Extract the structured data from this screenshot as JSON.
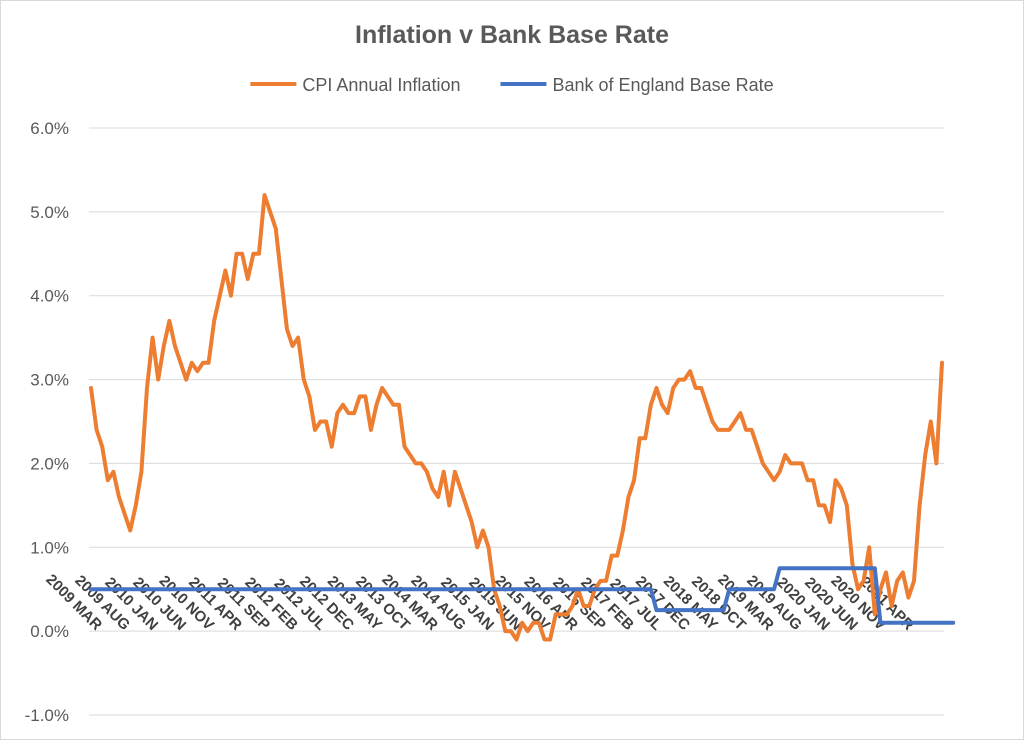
{
  "chart_data": {
    "type": "line",
    "title": "Inflation v Bank Base Rate",
    "legend_position": "top",
    "grid": true,
    "y_range": [
      -1.0,
      6.0
    ],
    "y_ticks": [
      "-1.0%",
      "0.0%",
      "1.0%",
      "2.0%",
      "3.0%",
      "4.0%",
      "5.0%",
      "6.0%"
    ],
    "x_start": "2009 MAR",
    "x_end": "2021 APR",
    "x_ticks": [
      "2009 MAR",
      "2009 AUG",
      "2010 JAN",
      "2010 JUN",
      "2010 NOV",
      "2011 APR",
      "2011 SEP",
      "2012 FEB",
      "2012 JUL",
      "2012 DEC",
      "2013 MAY",
      "2013 OCT",
      "2014 MAR",
      "2014 AUG",
      "2015 JAN",
      "2015 JUN",
      "2015 NOV",
      "2016 APR",
      "2016 SEP",
      "2017 FEB",
      "2017 JUL",
      "2017 DEC",
      "2018 MAY",
      "2018 OCT",
      "2019 MAR",
      "2019 AUG",
      "2020 JAN",
      "2020 JUN",
      "2020 NOV",
      "2021 APR"
    ],
    "series": [
      {
        "name": "CPI Annual Inflation",
        "color": "#ED7D31",
        "values": [
          2.9,
          2.4,
          2.2,
          1.8,
          1.9,
          1.6,
          1.4,
          1.2,
          1.5,
          1.9,
          2.9,
          3.5,
          3.0,
          3.4,
          3.7,
          3.4,
          3.2,
          3.0,
          3.2,
          3.1,
          3.2,
          3.2,
          3.7,
          4.0,
          4.3,
          4.0,
          4.5,
          4.5,
          4.2,
          4.5,
          4.5,
          5.2,
          5.0,
          4.8,
          4.2,
          3.6,
          3.4,
          3.5,
          3.0,
          2.8,
          2.4,
          2.5,
          2.5,
          2.2,
          2.6,
          2.7,
          2.6,
          2.6,
          2.8,
          2.8,
          2.4,
          2.7,
          2.9,
          2.8,
          2.7,
          2.7,
          2.2,
          2.1,
          2.0,
          2.0,
          1.9,
          1.7,
          1.6,
          1.9,
          1.5,
          1.9,
          1.7,
          1.5,
          1.3,
          1.0,
          1.2,
          1.0,
          0.5,
          0.3,
          0.0,
          0.0,
          -0.1,
          0.1,
          0.0,
          0.1,
          0.1,
          -0.1,
          -0.1,
          0.2,
          0.2,
          0.2,
          0.3,
          0.5,
          0.3,
          0.3,
          0.5,
          0.6,
          0.6,
          0.9,
          0.9,
          1.2,
          1.6,
          1.8,
          2.3,
          2.3,
          2.7,
          2.9,
          2.7,
          2.6,
          2.9,
          3.0,
          3.0,
          3.1,
          2.9,
          2.9,
          2.7,
          2.5,
          2.4,
          2.4,
          2.4,
          2.5,
          2.6,
          2.4,
          2.4,
          2.2,
          2.0,
          1.9,
          1.8,
          1.9,
          2.1,
          2.0,
          2.0,
          2.0,
          1.8,
          1.8,
          1.5,
          1.5,
          1.3,
          1.8,
          1.7,
          1.5,
          0.8,
          0.5,
          0.6,
          1.0,
          0.2,
          0.5,
          0.7,
          0.3,
          0.6,
          0.7,
          0.4,
          0.6,
          1.5,
          2.1,
          2.5,
          2.0,
          3.2
        ]
      },
      {
        "name": "Bank of England Base Rate",
        "color": "#4472C4",
        "values": [
          0.5,
          0.5,
          0.5,
          0.5,
          0.5,
          0.5,
          0.5,
          0.5,
          0.5,
          0.5,
          0.5,
          0.5,
          0.5,
          0.5,
          0.5,
          0.5,
          0.5,
          0.5,
          0.5,
          0.5,
          0.5,
          0.5,
          0.5,
          0.5,
          0.5,
          0.5,
          0.5,
          0.5,
          0.5,
          0.5,
          0.5,
          0.5,
          0.5,
          0.5,
          0.5,
          0.5,
          0.5,
          0.5,
          0.5,
          0.5,
          0.5,
          0.5,
          0.5,
          0.5,
          0.5,
          0.5,
          0.5,
          0.5,
          0.5,
          0.5,
          0.5,
          0.5,
          0.5,
          0.5,
          0.5,
          0.5,
          0.5,
          0.5,
          0.5,
          0.5,
          0.5,
          0.5,
          0.5,
          0.5,
          0.5,
          0.5,
          0.5,
          0.5,
          0.5,
          0.5,
          0.5,
          0.5,
          0.5,
          0.5,
          0.5,
          0.5,
          0.5,
          0.5,
          0.5,
          0.5,
          0.5,
          0.5,
          0.5,
          0.5,
          0.5,
          0.5,
          0.5,
          0.5,
          0.5,
          0.5,
          0.5,
          0.5,
          0.5,
          0.5,
          0.5,
          0.5,
          0.5,
          0.5,
          0.5,
          0.5,
          0.5,
          0.25,
          0.25,
          0.25,
          0.25,
          0.25,
          0.25,
          0.25,
          0.25,
          0.25,
          0.25,
          0.25,
          0.25,
          0.25,
          0.5,
          0.5,
          0.5,
          0.5,
          0.5,
          0.5,
          0.5,
          0.5,
          0.5,
          0.75,
          0.75,
          0.75,
          0.75,
          0.75,
          0.75,
          0.75,
          0.75,
          0.75,
          0.75,
          0.75,
          0.75,
          0.75,
          0.75,
          0.75,
          0.75,
          0.75,
          0.75,
          0.1,
          0.1,
          0.1,
          0.1,
          0.1,
          0.1,
          0.1,
          0.1,
          0.1,
          0.1,
          0.1,
          0.1,
          0.1,
          0.1
        ]
      }
    ]
  }
}
